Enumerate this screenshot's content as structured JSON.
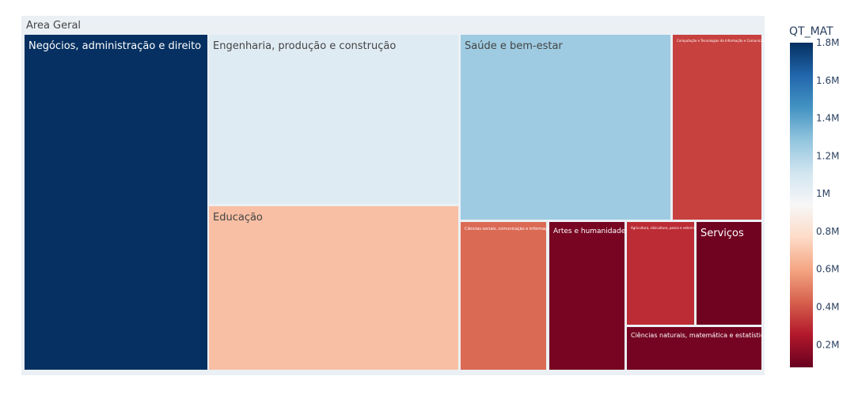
{
  "chart_data": {
    "type": "treemap",
    "root": "Area Geral",
    "colorbar_title": "QT_MAT",
    "colorbar_ticks": [
      "0.2M",
      "0.4M",
      "0.6M",
      "0.8M",
      "1M",
      "1.2M",
      "1.4M",
      "1.6M",
      "1.8M"
    ],
    "colorbar_tick_values": [
      0.2,
      0.4,
      0.6,
      0.8,
      1.0,
      1.2,
      1.4,
      1.6,
      1.8
    ],
    "color_range": [
      0.08,
      1.8
    ],
    "colorscale": [
      "#67001f",
      "#b2182b",
      "#d6604d",
      "#f4a582",
      "#fddbc7",
      "#f7f7f7",
      "#d1e5f0",
      "#92c5de",
      "#4393c3",
      "#2166ac",
      "#053061"
    ],
    "labels": [
      "Negócios, administração e direito",
      "Engenharia, produção e construção",
      "Educação",
      "Saúde e bem-estar",
      "Computação e Tecnologias da Informação e Comunicação (TIC)",
      "Ciências sociais, comunicação e informação",
      "Artes e humanidades",
      "Agricultura, silvicultura, pesca e veterinária",
      "Serviços",
      "Ciências naturais, matemática e estatística"
    ],
    "values": [
      1.8,
      1.05,
      0.68,
      1.25,
      0.35,
      0.45,
      0.12,
      0.3,
      0.1,
      0.11
    ],
    "unit": "M"
  }
}
